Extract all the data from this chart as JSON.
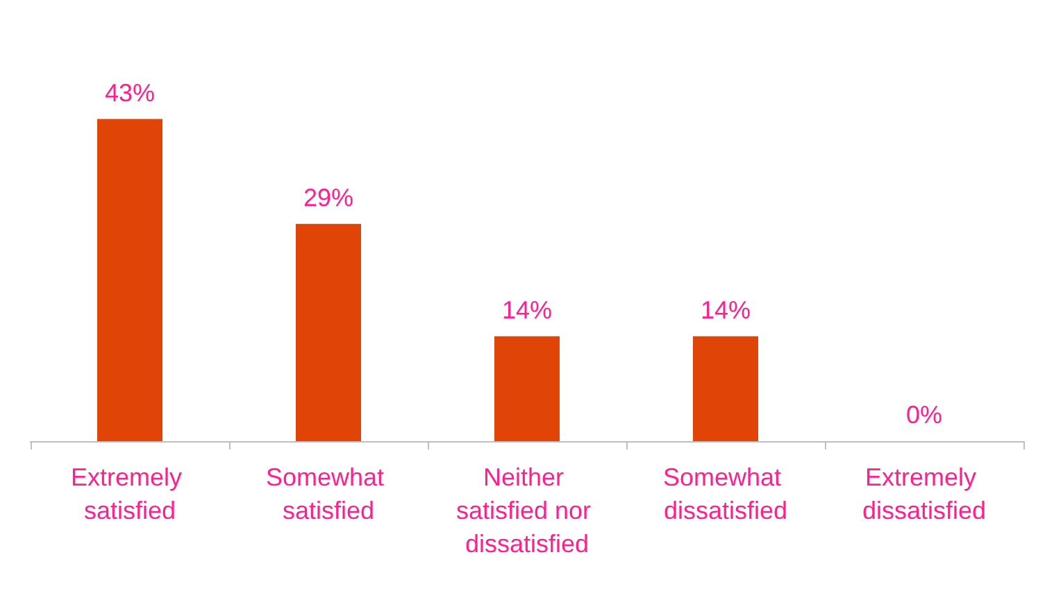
{
  "chart_data": {
    "type": "bar",
    "categories": [
      "Extremely satisfied",
      "Somewhat satisfied",
      "Neither satisfied nor dissatisfied",
      "Somewhat dissatisfied",
      "Extremely dissatisfied"
    ],
    "values": [
      43,
      29,
      14,
      14,
      0
    ],
    "color": "#e04406",
    "value_labels": [
      "43%",
      "29%",
      "14%",
      "14%",
      "0%"
    ]
  }
}
